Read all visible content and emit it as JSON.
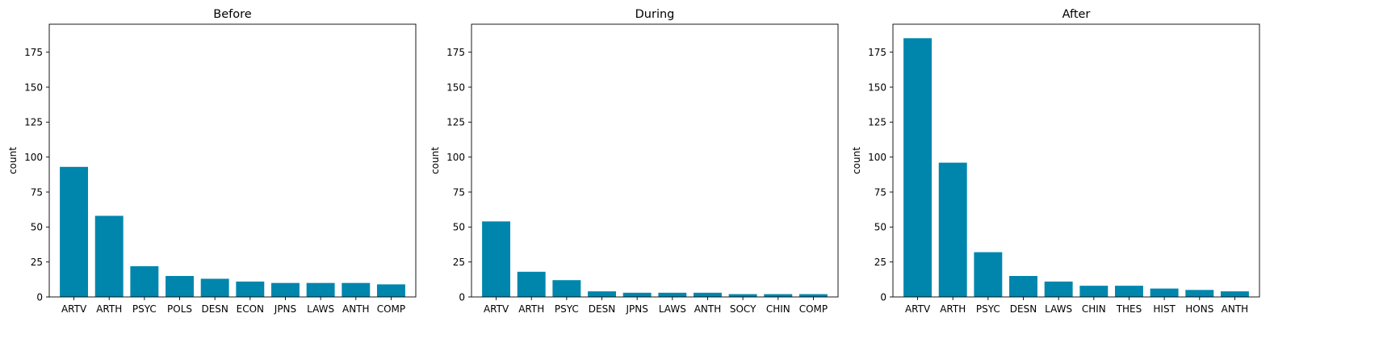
{
  "chart_data": [
    {
      "type": "bar",
      "title": "Before",
      "xlabel": "",
      "ylabel": "count",
      "ylim": [
        0,
        195
      ],
      "yticks": [
        0,
        25,
        50,
        75,
        100,
        125,
        150,
        175
      ],
      "categories": [
        "ARTV",
        "ARTH",
        "PSYC",
        "POLS",
        "DESN",
        "ECON",
        "JPNS",
        "LAWS",
        "ANTH",
        "COMP"
      ],
      "values": [
        93,
        58,
        22,
        15,
        13,
        11,
        10,
        10,
        10,
        9
      ],
      "color": "#0086ad"
    },
    {
      "type": "bar",
      "title": "During",
      "xlabel": "",
      "ylabel": "count",
      "ylim": [
        0,
        195
      ],
      "yticks": [
        0,
        25,
        50,
        75,
        100,
        125,
        150,
        175
      ],
      "categories": [
        "ARTV",
        "ARTH",
        "PSYC",
        "DESN",
        "JPNS",
        "LAWS",
        "ANTH",
        "SOCY",
        "CHIN",
        "COMP"
      ],
      "values": [
        54,
        18,
        12,
        4,
        3,
        3,
        3,
        2,
        2,
        2
      ],
      "color": "#0086ad"
    },
    {
      "type": "bar",
      "title": "After",
      "xlabel": "",
      "ylabel": "count",
      "ylim": [
        0,
        195
      ],
      "yticks": [
        0,
        25,
        50,
        75,
        100,
        125,
        150,
        175
      ],
      "categories": [
        "ARTV",
        "ARTH",
        "PSYC",
        "DESN",
        "LAWS",
        "CHIN",
        "THES",
        "HIST",
        "HONS",
        "ANTH"
      ],
      "values": [
        185,
        96,
        32,
        15,
        11,
        8,
        8,
        6,
        5,
        4
      ],
      "color": "#0086ad"
    }
  ]
}
